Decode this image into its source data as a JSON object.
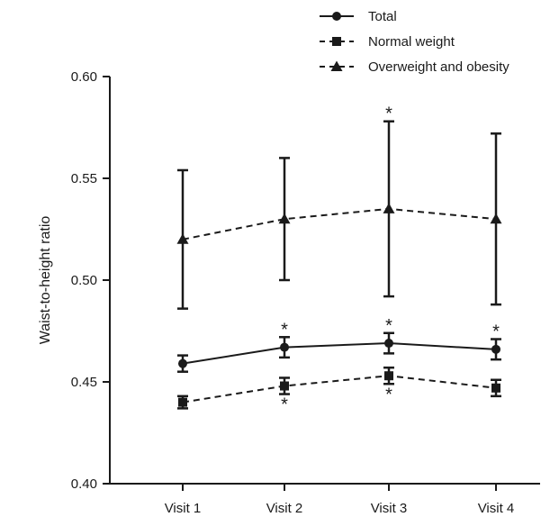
{
  "chart_data": {
    "type": "line",
    "title": "",
    "xlabel": "",
    "ylabel": "Waist-to-height ratio",
    "ylim": [
      0.4,
      0.6
    ],
    "yticks": [
      "0.40",
      "0.45",
      "0.50",
      "0.55",
      "0.60"
    ],
    "categories": [
      "Visit 1",
      "Visit 2",
      "Visit 3",
      "Visit 4"
    ],
    "grid": false,
    "legend_position": "top-right",
    "series": [
      {
        "name": "Total",
        "line_style": "solid",
        "marker": "circle",
        "values": [
          0.459,
          0.467,
          0.469,
          0.466
        ],
        "error_low": [
          0.455,
          0.462,
          0.464,
          0.461
        ],
        "error_high": [
          0.463,
          0.472,
          0.474,
          0.471
        ],
        "significance": [
          "",
          "*",
          "*",
          "*"
        ],
        "significance_position": "above"
      },
      {
        "name": "Normal weight",
        "line_style": "dashed",
        "marker": "square",
        "values": [
          0.44,
          0.448,
          0.453,
          0.447
        ],
        "error_low": [
          0.437,
          0.444,
          0.449,
          0.443
        ],
        "error_high": [
          0.443,
          0.452,
          0.457,
          0.451
        ],
        "significance": [
          "",
          "*",
          "*",
          ""
        ],
        "significance_position": "below"
      },
      {
        "name": "Overweight and obesity",
        "line_style": "dash-dot",
        "marker": "triangle",
        "values": [
          0.52,
          0.53,
          0.535,
          0.53
        ],
        "error_low": [
          0.486,
          0.5,
          0.492,
          0.488
        ],
        "error_high": [
          0.554,
          0.56,
          0.578,
          0.572
        ],
        "significance": [
          "",
          "",
          "*",
          ""
        ],
        "significance_position": "above"
      }
    ]
  }
}
